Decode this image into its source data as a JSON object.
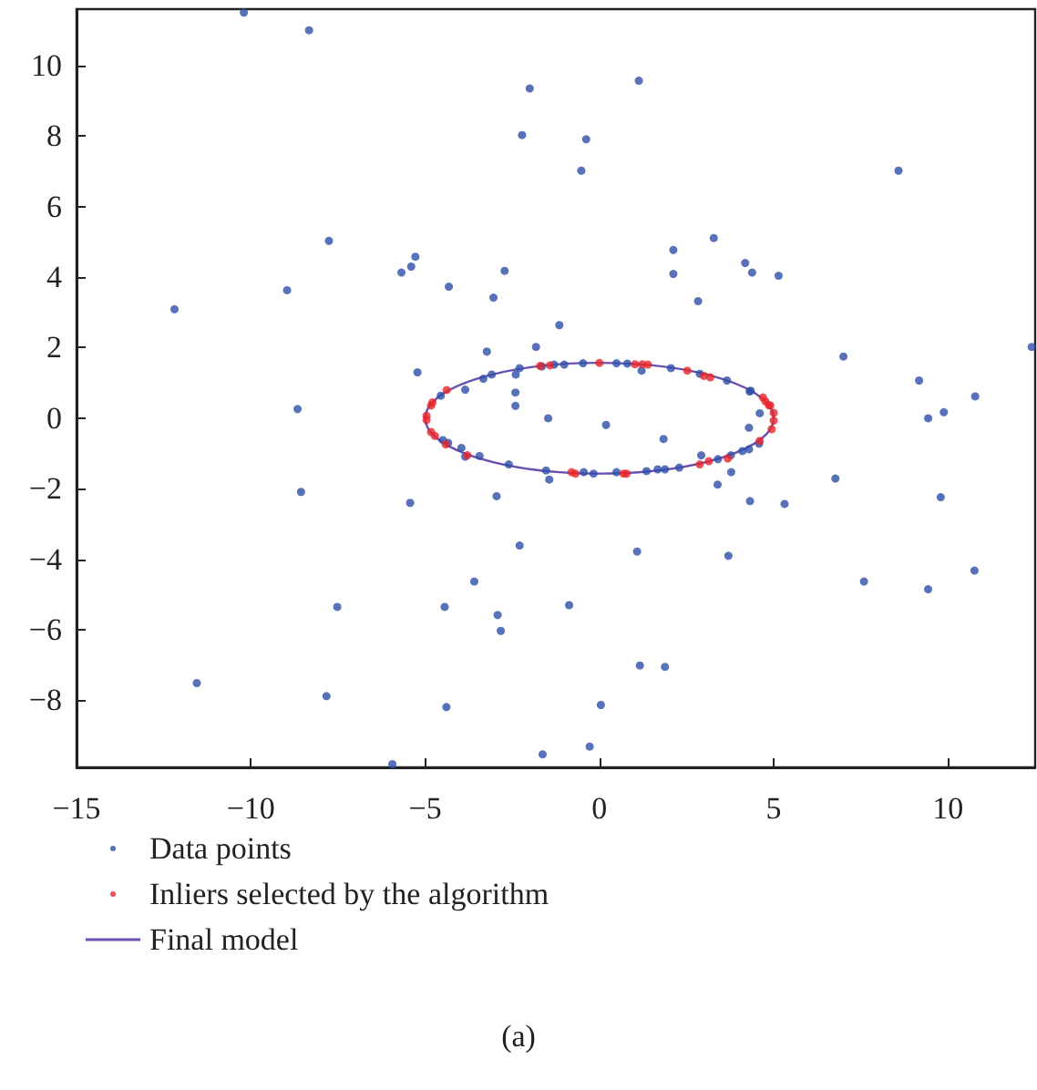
{
  "chart_data": {
    "type": "scatter",
    "xlim": [
      -15,
      12.5
    ],
    "xticks": [
      -15,
      -10,
      -5,
      0,
      5,
      10
    ],
    "ylim": [
      -9.9,
      11.6
    ],
    "yticks": [
      -8,
      -6,
      -4,
      -2,
      0,
      2,
      4,
      6,
      8,
      10
    ],
    "grid": false,
    "legend": "bottom",
    "marker": "circle",
    "annotations": [
      "(a)"
    ],
    "series": [
      {
        "name": "Data points",
        "color": "#2e4fa8",
        "x": [
          -10.2,
          -8.33,
          -2.22,
          -12.19,
          -8.96,
          -7.76,
          -5.68,
          -5.4,
          -5.28,
          -4.32,
          -2.72,
          -3.04,
          -3.23,
          -5.22,
          -3.85,
          -2.41,
          -2.0,
          1.13,
          -0.38,
          -0.52,
          8.58,
          2.12,
          2.12,
          3.28,
          4.18,
          4.38,
          5.14,
          2.83,
          -1.15,
          -1.82,
          7.0,
          9.17,
          10.78,
          12.4,
          -8.66,
          -8.56,
          -5.43,
          -2.95,
          -2.29,
          -3.59,
          -7.52,
          -4.44,
          -2.92,
          -2.83,
          -11.55,
          -7.83,
          -4.39,
          -5.94,
          -2.41,
          -1.47,
          0.19,
          1.84,
          -1.44,
          3.39,
          3.78,
          4.32,
          5.31,
          6.77,
          1.08,
          3.7,
          -0.87,
          1.16,
          1.88,
          0.04,
          -0.28,
          -1.63,
          7.59,
          9.43,
          10.76,
          9.79,
          9.43,
          9.88,
          4.6,
          4.29,
          4.34,
          -2.4,
          -2.29,
          -1.65,
          -1.3,
          -1.01,
          -0.47,
          0.49,
          0.8,
          1.21,
          2.05,
          2.88,
          3.66,
          4.31,
          4.58,
          4.29,
          4.1,
          3.77,
          3.4,
          2.92,
          2.29,
          1.88,
          1.67,
          1.35,
          0.49,
          -0.17,
          -0.45,
          -1.53,
          -2.6,
          -4.55,
          -4.49,
          -4.34,
          -3.96,
          -3.85,
          -3.44,
          -3.33,
          -3.09
        ],
        "values": [
          11.5,
          11.0,
          8.03,
          3.09,
          3.63,
          5.03,
          4.13,
          4.3,
          4.58,
          3.73,
          4.18,
          3.42,
          1.89,
          1.3,
          0.81,
          0.73,
          9.35,
          9.57,
          7.91,
          7.02,
          7.02,
          4.77,
          4.09,
          5.11,
          4.4,
          4.13,
          4.04,
          3.32,
          2.64,
          2.02,
          1.75,
          1.07,
          0.62,
          2.02,
          0.26,
          -2.09,
          -2.4,
          -2.21,
          -3.61,
          -4.63,
          -5.35,
          -5.35,
          -5.58,
          -6.03,
          -7.51,
          -7.88,
          -8.19,
          -9.81,
          0.35,
          0.0,
          -0.19,
          -0.59,
          -1.74,
          -1.88,
          -1.53,
          -2.35,
          -2.43,
          -1.71,
          -3.78,
          -3.9,
          -5.3,
          -7.01,
          -7.05,
          -8.13,
          -9.31,
          -9.53,
          -4.63,
          -4.85,
          -4.32,
          -2.24,
          0.0,
          0.17,
          0.14,
          -0.27,
          0.78,
          1.24,
          1.42,
          1.47,
          1.52,
          1.52,
          1.56,
          1.56,
          1.55,
          1.35,
          1.42,
          1.26,
          1.07,
          0.76,
          -0.72,
          -0.88,
          -0.93,
          -1.05,
          -1.16,
          -1.05,
          -1.4,
          -1.45,
          -1.45,
          -1.5,
          -1.53,
          -1.57,
          -1.53,
          -1.48,
          -1.31,
          0.64,
          -0.62,
          -0.7,
          -0.84,
          -1.09,
          -1.07,
          1.12,
          1.24
        ]
      },
      {
        "name": "Inliers selected by the algorithm",
        "color": "#e8262a",
        "x": [
          -1.7,
          -1.42,
          0,
          1.02,
          1.23,
          1.39,
          2.52,
          3.0,
          3.18,
          4.76,
          4.86,
          4.69,
          4.9,
          5.0,
          5.0,
          4.94,
          4.6,
          3.68,
          3.14,
          2.88,
          0.78,
          0.69,
          -0.69,
          -0.8,
          -4.38,
          -4.79,
          -4.83,
          -4.96,
          -4.96,
          -4.83,
          -4.72,
          -4.41,
          -3.79
        ],
        "values": [
          1.48,
          1.5,
          1.57,
          1.53,
          1.53,
          1.52,
          1.35,
          1.2,
          1.16,
          0.48,
          0.37,
          0.59,
          0.36,
          0.15,
          -0.07,
          -0.31,
          -0.64,
          -1.14,
          -1.22,
          -1.31,
          -1.57,
          -1.57,
          -1.57,
          -1.53,
          0.8,
          0.45,
          0.36,
          0.07,
          -0.05,
          -0.39,
          -0.5,
          -0.74,
          -1.05
        ]
      },
      {
        "name": "Final model",
        "type": "line",
        "color": "#6a4fb0",
        "line_style": "solid"
      }
    ]
  }
}
